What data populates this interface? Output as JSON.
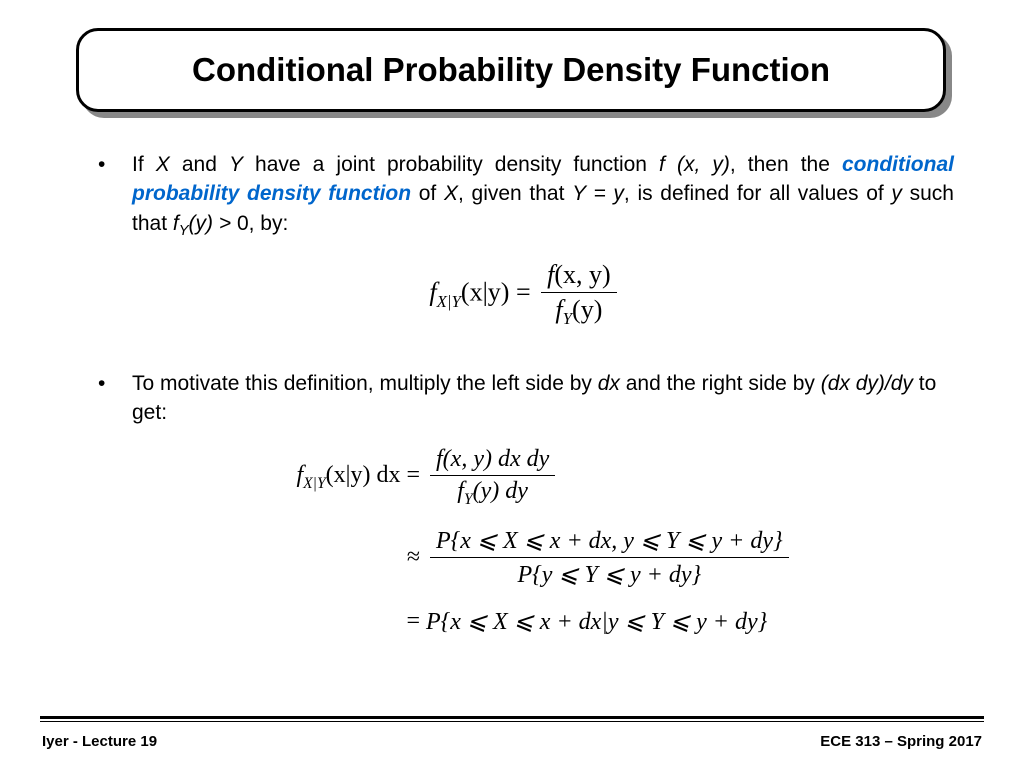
{
  "title": "Conditional Probability Density Function",
  "bullets": {
    "b1": {
      "pre": "If ",
      "x": "X",
      "and": " and ",
      "y": "Y",
      "mid1": " have a joint probability density function ",
      "fxy": "f (x, y)",
      "mid2": ", then the ",
      "term": "conditional probability density function",
      "mid3": " of ",
      "x2": "X",
      "mid4": ", given that ",
      "yeq": "Y = y",
      "mid5": ", is defined for all values of ",
      "yvar": "y",
      "mid6": " such that ",
      "fy": "f",
      "fysub": "Y",
      "fyarg": "(y) >",
      "zero": " 0, by:"
    },
    "b2": {
      "pre": "To motivate this definition, multiply the left side by ",
      "dx": "dx",
      "mid": " and the right side by ",
      "dxdy": "(dx dy)/dy",
      "post": " to get:"
    }
  },
  "eq1": {
    "lhs_f": "f",
    "lhs_sub": "X|Y",
    "lhs_arg": "(x|y) = ",
    "num_f": "f",
    "num_arg": "(x, y)",
    "den_f": "f",
    "den_sub": "Y",
    "den_arg": "(y)"
  },
  "eq2": {
    "r1_lhs_f": "f",
    "r1_lhs_sub": "X|Y",
    "r1_lhs_arg": "(x|y) dx",
    "r1_eq": " = ",
    "r1_num": "f(x, y) dx dy",
    "r1_den_f": "f",
    "r1_den_sub": "Y",
    "r1_den_arg": "(y) dy",
    "r2_approx": "≈ ",
    "r2_num": "P{x ⩽ X ⩽ x + dx,  y ⩽ Y ⩽ y + dy}",
    "r2_den": "P{y ⩽ Y ⩽ y + dy}",
    "r3_eq": "= ",
    "r3_rhs": "P{x ⩽ X ⩽ x + dx|y ⩽ Y ⩽ y + dy}"
  },
  "footer": {
    "left": "Iyer  - Lecture 19",
    "right": "ECE 313 – Spring 2017"
  },
  "style": {
    "title_fontsize": 33,
    "body_fontsize": 21,
    "eq_fontsize": 26,
    "accent_color": "#0066cc",
    "bg": "#ffffff",
    "text": "#000000",
    "shadow": "#888888"
  }
}
